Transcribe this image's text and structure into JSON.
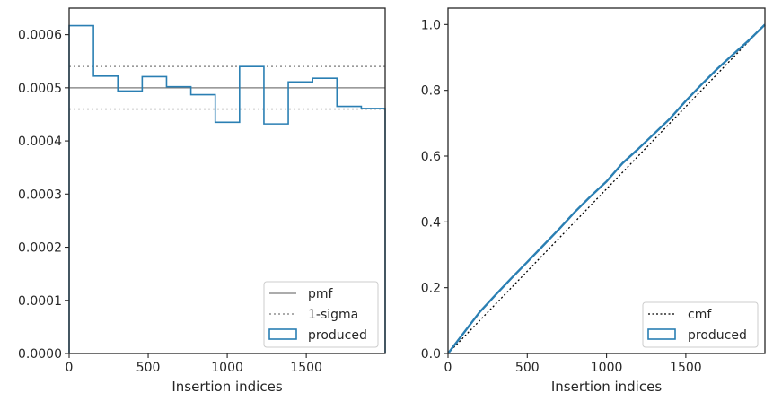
{
  "colors": {
    "produced": "#2a7fb3",
    "reference": "#7a7a7a",
    "cmf": "#000000",
    "axes": "#262626"
  },
  "chart_data": [
    {
      "type": "step-histogram",
      "xlabel": "Insertion indices",
      "ylabel": "",
      "xlim": [
        0,
        1999
      ],
      "ylim": [
        0,
        0.00065
      ],
      "x_ticks": [
        0,
        500,
        1000,
        1500
      ],
      "x_tick_labels": [
        "0",
        "500",
        "1000",
        "1500"
      ],
      "y_ticks": [
        0,
        0.0001,
        0.0002,
        0.0003,
        0.0004,
        0.0005,
        0.0006
      ],
      "y_tick_labels": [
        "0.0000",
        "0.0001",
        "0.0002",
        "0.0003",
        "0.0004",
        "0.0005",
        "0.0006"
      ],
      "bin_edges": [
        0,
        154,
        308,
        462,
        616,
        770,
        924,
        1078,
        1232,
        1386,
        1540,
        1694,
        1848,
        1999
      ],
      "series": [
        {
          "name": "produced",
          "values": [
            0.000617,
            0.000522,
            0.000494,
            0.000521,
            0.000502,
            0.000487,
            0.000435,
            0.00054,
            0.000432,
            0.000511,
            0.000518,
            0.000465,
            0.000461
          ]
        }
      ],
      "reference_lines": [
        {
          "name": "pmf",
          "y": 0.0005,
          "style": "solid"
        },
        {
          "name": "1-sigma",
          "y": 0.00054,
          "style": "dotted"
        },
        {
          "name": "",
          "y": 0.00046,
          "style": "dotted"
        }
      ],
      "legend": {
        "position": "lower-right",
        "entries": [
          "pmf",
          "1-sigma",
          "produced"
        ]
      }
    },
    {
      "type": "line",
      "xlabel": "Insertion indices",
      "ylabel": "",
      "xlim": [
        0,
        1999
      ],
      "ylim": [
        0,
        1.05
      ],
      "x_ticks": [
        0,
        500,
        1000,
        1500
      ],
      "x_tick_labels": [
        "0",
        "500",
        "1000",
        "1500"
      ],
      "y_ticks": [
        0,
        0.2,
        0.4,
        0.6,
        0.8,
        1.0
      ],
      "y_tick_labels": [
        "0.0",
        "0.2",
        "0.4",
        "0.6",
        "0.8",
        "1.0"
      ],
      "series": [
        {
          "name": "cmf",
          "style": "dotted",
          "x": [
            0,
            1999
          ],
          "y": [
            0,
            1
          ]
        },
        {
          "name": "produced",
          "style": "solid",
          "x": [
            0,
            100,
            200,
            300,
            400,
            500,
            600,
            700,
            800,
            900,
            1000,
            1100,
            1200,
            1300,
            1400,
            1500,
            1600,
            1700,
            1800,
            1900,
            1999
          ],
          "y": [
            0,
            0.063,
            0.126,
            0.178,
            0.229,
            0.278,
            0.328,
            0.378,
            0.43,
            0.478,
            0.523,
            0.578,
            0.622,
            0.668,
            0.714,
            0.768,
            0.818,
            0.866,
            0.91,
            0.953,
            1.0
          ]
        }
      ],
      "legend": {
        "position": "lower-right",
        "entries": [
          "cmf",
          "produced"
        ]
      }
    }
  ]
}
